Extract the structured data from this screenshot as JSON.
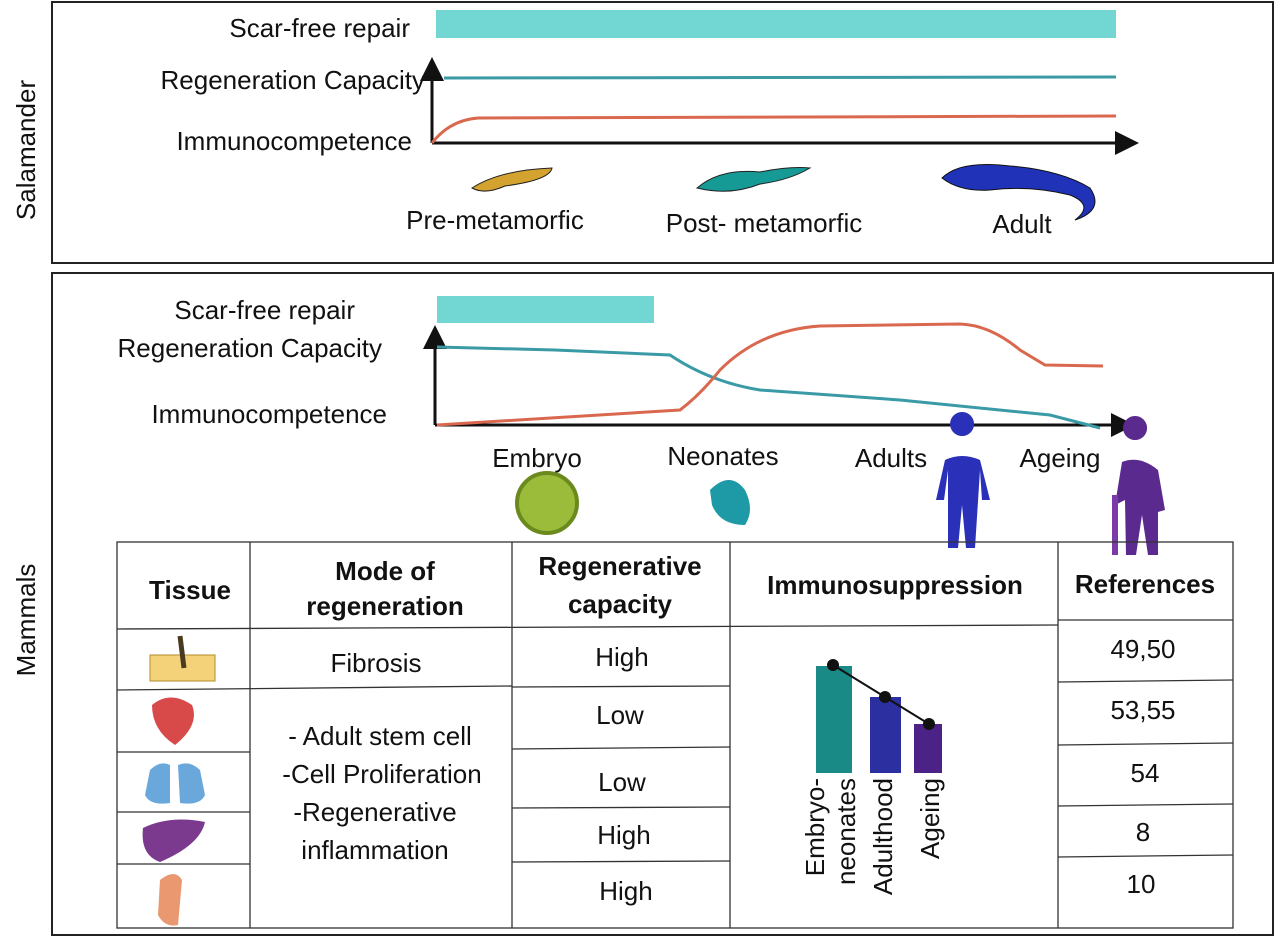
{
  "salamander": {
    "side_label": "Salamander",
    "row_labels": [
      "Scar-free repair",
      "Regeneration Capacity",
      "Immunocompetence"
    ],
    "stages": [
      "Pre-metamorfic",
      "Post- metamorfic",
      "Adult"
    ]
  },
  "mammals": {
    "side_label": "Mammals",
    "row_labels": [
      "Scar-free repair",
      "Regeneration Capacity",
      "Immunocompetence"
    ],
    "stages": [
      "Embryo",
      "Neonates",
      "Adults",
      "Ageing"
    ],
    "table": {
      "headers": [
        [
          "Tissue"
        ],
        [
          "Mode of",
          "regeneration"
        ],
        [
          "Regenerative",
          "capacity"
        ],
        [
          "Immunosuppression"
        ],
        [
          "References"
        ]
      ],
      "mode": [
        "Fibrosis",
        [
          "- Adult stem cell",
          "-Cell Proliferation",
          "-Regenerative",
          "inflammation"
        ]
      ],
      "capacity": [
        "High",
        "Low",
        "Low",
        "High",
        "High"
      ],
      "immunosuppression_labels": [
        [
          "Embryo-",
          "neonates"
        ],
        [
          "Adulthood"
        ],
        [
          "Ageing"
        ]
      ],
      "references": [
        "49,50",
        "53,55",
        "54",
        "8",
        "10"
      ]
    }
  }
}
